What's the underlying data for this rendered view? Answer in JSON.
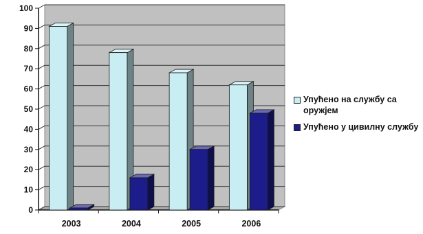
{
  "chart_data": {
    "type": "bar",
    "categories": [
      "2003",
      "2004",
      "2005",
      "2006"
    ],
    "series": [
      {
        "name": "Упућено на службу са оружјем",
        "values": [
          91,
          78,
          68,
          62
        ],
        "color": "#c8eef4"
      },
      {
        "name": "Упућено у цивилну службу",
        "values": [
          1,
          16,
          30,
          48
        ],
        "color": "#1c1c8a"
      }
    ],
    "ylim": [
      0,
      100
    ],
    "yticks": [
      "0",
      "10",
      "20",
      "30",
      "40",
      "50",
      "60",
      "70",
      "80",
      "90",
      "100"
    ],
    "grid": true,
    "legend_position": "right",
    "plot_background": "#c0c0c0"
  }
}
